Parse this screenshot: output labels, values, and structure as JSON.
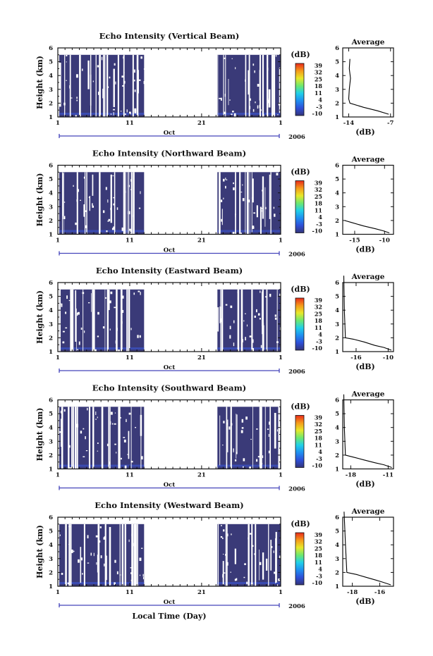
{
  "colors": {
    "background": "#3a3a78",
    "echo_base": "#3a3a78",
    "echo_low": "#3a52c8",
    "axis": "#111111",
    "timeline": "#4444bb"
  },
  "colorbar": {
    "unit": "(dB)",
    "stops": [
      "#343478",
      "#2e4fd8",
      "#1f8ff0",
      "#20d0e8",
      "#6ee86e",
      "#e8e82a",
      "#f59a1a",
      "#e82a1a"
    ]
  },
  "figure": {
    "xlabel": "Local Time (Day)",
    "year": "2006",
    "month": "Oct",
    "x_ticks": [
      "1",
      "11",
      "21",
      "1"
    ],
    "y_ticks": [
      "1",
      "2",
      "3",
      "4",
      "5",
      "6"
    ],
    "ylabel": "Height (km)",
    "avg_title": "Average",
    "avg_xlabel": "(dB)"
  },
  "chart_data": [
    {
      "type": "heatmap",
      "title": "Echo Intensity (Vertical Beam)",
      "ylabel": "Height (km)",
      "ylim": [
        1,
        6
      ],
      "xlim": [
        1,
        32
      ],
      "colorbar_ticks": [
        "39",
        "32",
        "25",
        "18",
        "11",
        "4",
        "-3",
        "-10"
      ],
      "data_intervals": [
        [
          1.2,
          13.0
        ],
        [
          23.2,
          32.0
        ]
      ],
      "echo_top_km": 5.5,
      "avg_profile": {
        "xticks": [
          "-14",
          "-7"
        ],
        "xlim": [
          -15,
          -6.5
        ],
        "points": [
          [
            -13.8,
            5.2
          ],
          [
            -13.9,
            4.5
          ],
          [
            -13.7,
            3.8
          ],
          [
            -13.9,
            3.0
          ],
          [
            -14.0,
            2.3
          ],
          [
            -13.8,
            2.0
          ],
          [
            -11.5,
            1.7
          ],
          [
            -9.2,
            1.45
          ],
          [
            -7.3,
            1.2
          ]
        ]
      }
    },
    {
      "type": "heatmap",
      "title": "Echo Intensity (Northward Beam)",
      "ylabel": "Height (km)",
      "ylim": [
        1,
        6
      ],
      "xlim": [
        1,
        32
      ],
      "colorbar_ticks": [
        "39",
        "32",
        "25",
        "18",
        "11",
        "4",
        "-3",
        "-10"
      ],
      "data_intervals": [
        [
          1.2,
          13.0
        ],
        [
          23.2,
          32.0
        ]
      ],
      "echo_top_km": 5.5,
      "avg_profile": {
        "xticks": [
          "-15",
          "-10"
        ],
        "xlim": [
          -17,
          -8.5
        ],
        "points": [
          [
            -16.7,
            2.0
          ],
          [
            -15.5,
            1.85
          ],
          [
            -13.5,
            1.6
          ],
          [
            -11.5,
            1.4
          ],
          [
            -10.2,
            1.25
          ],
          [
            -9.2,
            1.1
          ]
        ]
      }
    },
    {
      "type": "heatmap",
      "title": "Echo Intensity (Eastward Beam)",
      "ylabel": "Height (km)",
      "ylim": [
        1,
        6
      ],
      "xlim": [
        1,
        32
      ],
      "colorbar_ticks": [
        "39",
        "32",
        "25",
        "18",
        "11",
        "4",
        "-3",
        "-10"
      ],
      "data_intervals": [
        [
          1.2,
          13.0
        ],
        [
          23.2,
          32.0
        ]
      ],
      "echo_top_km": 5.5,
      "avg_profile": {
        "xticks": [
          "-16",
          "-10"
        ],
        "xlim": [
          -18.5,
          -9
        ],
        "points": [
          [
            -18.3,
            6.5
          ],
          [
            -18.2,
            4.0
          ],
          [
            -18.0,
            2.0
          ],
          [
            -16.5,
            1.9
          ],
          [
            -14.5,
            1.7
          ],
          [
            -12.5,
            1.45
          ],
          [
            -10.8,
            1.3
          ],
          [
            -9.4,
            1.1
          ]
        ]
      }
    },
    {
      "type": "heatmap",
      "title": "Echo Intensity (Southward Beam)",
      "ylabel": "Height (km)",
      "ylim": [
        1,
        6
      ],
      "xlim": [
        1,
        32
      ],
      "colorbar_ticks": [
        "39",
        "32",
        "25",
        "18",
        "11",
        "4",
        "-3",
        "-10"
      ],
      "data_intervals": [
        [
          1.2,
          13.0
        ],
        [
          23.2,
          32.0
        ]
      ],
      "echo_top_km": 5.5,
      "avg_profile": {
        "xticks": [
          "-18",
          "-11"
        ],
        "xlim": [
          -19.5,
          -10
        ],
        "points": [
          [
            -19.3,
            6.4
          ],
          [
            -19.2,
            4.0
          ],
          [
            -19.0,
            2.0
          ],
          [
            -17.5,
            1.85
          ],
          [
            -15.5,
            1.65
          ],
          [
            -13.5,
            1.45
          ],
          [
            -11.8,
            1.3
          ],
          [
            -10.3,
            1.1
          ]
        ]
      }
    },
    {
      "type": "heatmap",
      "title": "Echo Intensity (Westward Beam)",
      "ylabel": "Height (km)",
      "ylim": [
        1,
        6
      ],
      "xlim": [
        1,
        32
      ],
      "colorbar_ticks": [
        "39",
        "32",
        "25",
        "18",
        "11",
        "4",
        "-3",
        "-10"
      ],
      "data_intervals": [
        [
          1.2,
          13.0
        ],
        [
          23.2,
          32.0
        ]
      ],
      "echo_top_km": 5.5,
      "avg_profile": {
        "xticks": [
          "-18",
          "-16"
        ],
        "xlim": [
          -18.7,
          -15
        ],
        "points": [
          [
            -18.6,
            6.4
          ],
          [
            -18.5,
            4.0
          ],
          [
            -18.4,
            2.0
          ],
          [
            -17.7,
            1.85
          ],
          [
            -17.0,
            1.65
          ],
          [
            -16.3,
            1.45
          ],
          [
            -15.8,
            1.3
          ],
          [
            -15.2,
            1.1
          ]
        ]
      }
    }
  ]
}
